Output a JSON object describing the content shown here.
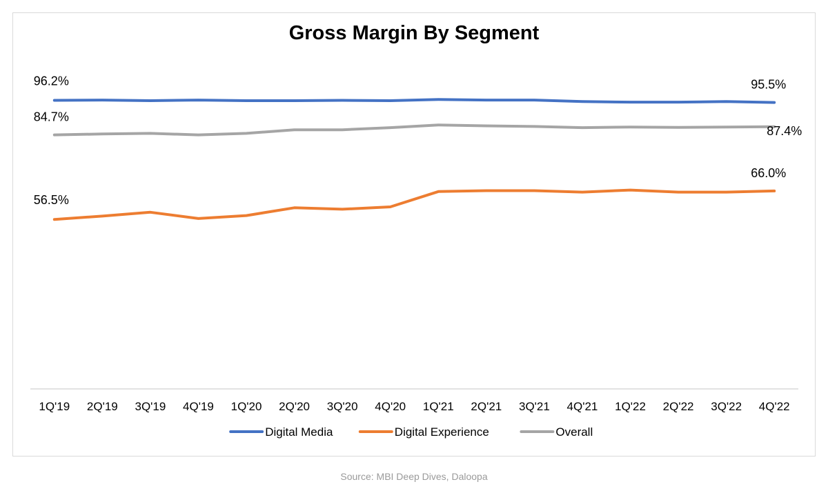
{
  "chart_data": {
    "type": "line",
    "title": "Gross Margin By Segment",
    "source": "Source: MBI Deep Dives, Daloopa",
    "categories": [
      "1Q'19",
      "2Q'19",
      "3Q'19",
      "4Q'19",
      "1Q'20",
      "2Q'20",
      "3Q'20",
      "4Q'20",
      "1Q'21",
      "2Q'21",
      "3Q'21",
      "4Q'21",
      "1Q'22",
      "2Q'22",
      "3Q'22",
      "4Q'22"
    ],
    "series": [
      {
        "name": "Digital Media",
        "color": "#4472c4",
        "values": [
          96.2,
          96.3,
          96.1,
          96.3,
          96.1,
          96.1,
          96.2,
          96.1,
          96.5,
          96.3,
          96.3,
          95.8,
          95.6,
          95.6,
          95.8,
          95.5
        ],
        "first_label": "96.2%",
        "last_label": "95.5%"
      },
      {
        "name": "Digital Experience",
        "color": "#ed7d31",
        "values": [
          56.5,
          57.6,
          58.9,
          56.8,
          57.8,
          60.4,
          59.9,
          60.7,
          65.8,
          66.1,
          66.1,
          65.6,
          66.3,
          65.6,
          65.6,
          66.0
        ],
        "first_label": "56.5%",
        "last_label": "66.0%"
      },
      {
        "name": "Overall",
        "color": "#a5a5a5",
        "values": [
          84.7,
          85.0,
          85.2,
          84.7,
          85.2,
          86.4,
          86.4,
          87.1,
          88.0,
          87.7,
          87.5,
          87.1,
          87.3,
          87.2,
          87.3,
          87.4
        ],
        "first_label": "84.7%",
        "last_label": "87.4%"
      }
    ],
    "ylim": [
      0,
      100
    ],
    "grid": false,
    "legend_position": "bottom"
  }
}
